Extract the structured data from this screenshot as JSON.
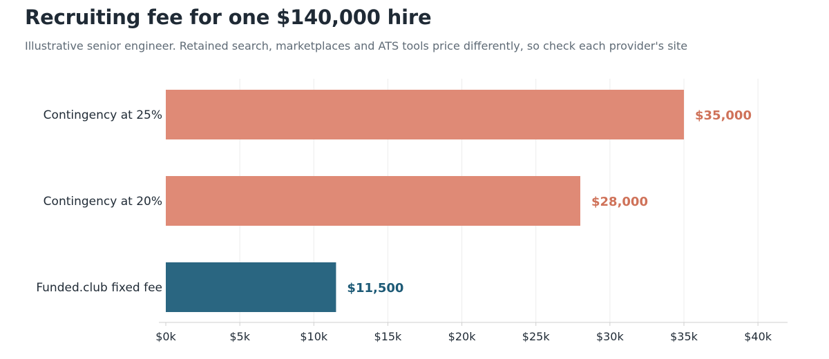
{
  "colors": {
    "contingency": "#df8a76",
    "fixed": "#2a6681",
    "contingency_label": "#cf7259",
    "fixed_label": "#1d5a76",
    "gridline": "#ececec",
    "axis": "#cfcfcf",
    "text": "#1f2a35",
    "subtitle": "#5f6b76"
  },
  "chart_data": {
    "type": "bar",
    "orientation": "horizontal",
    "title": "Recruiting fee for one $140,000 hire",
    "subtitle": "Illustrative senior engineer. Retained search, marketplaces and ATS tools price differently, so check each provider's site",
    "categories": [
      "Contingency at 25%",
      "Contingency at 20%",
      "Funded.club fixed fee"
    ],
    "values": [
      35000,
      28000,
      11500
    ],
    "data_labels": [
      "$35,000",
      "$28,000",
      "$11,500"
    ],
    "bar_colors": [
      "#df8a76",
      "#df8a76",
      "#2a6681"
    ],
    "label_colors": [
      "#cf7259",
      "#cf7259",
      "#1d5a76"
    ],
    "xlabel": "",
    "ylabel": "",
    "xlim": [
      0,
      42000
    ],
    "xticks": [
      0,
      5000,
      10000,
      15000,
      20000,
      25000,
      30000,
      35000,
      40000
    ],
    "xtick_labels": [
      "$0k",
      "$5k",
      "$10k",
      "$15k",
      "$20k",
      "$25k",
      "$30k",
      "$35k",
      "$40k"
    ],
    "grid": true,
    "legend": false
  }
}
